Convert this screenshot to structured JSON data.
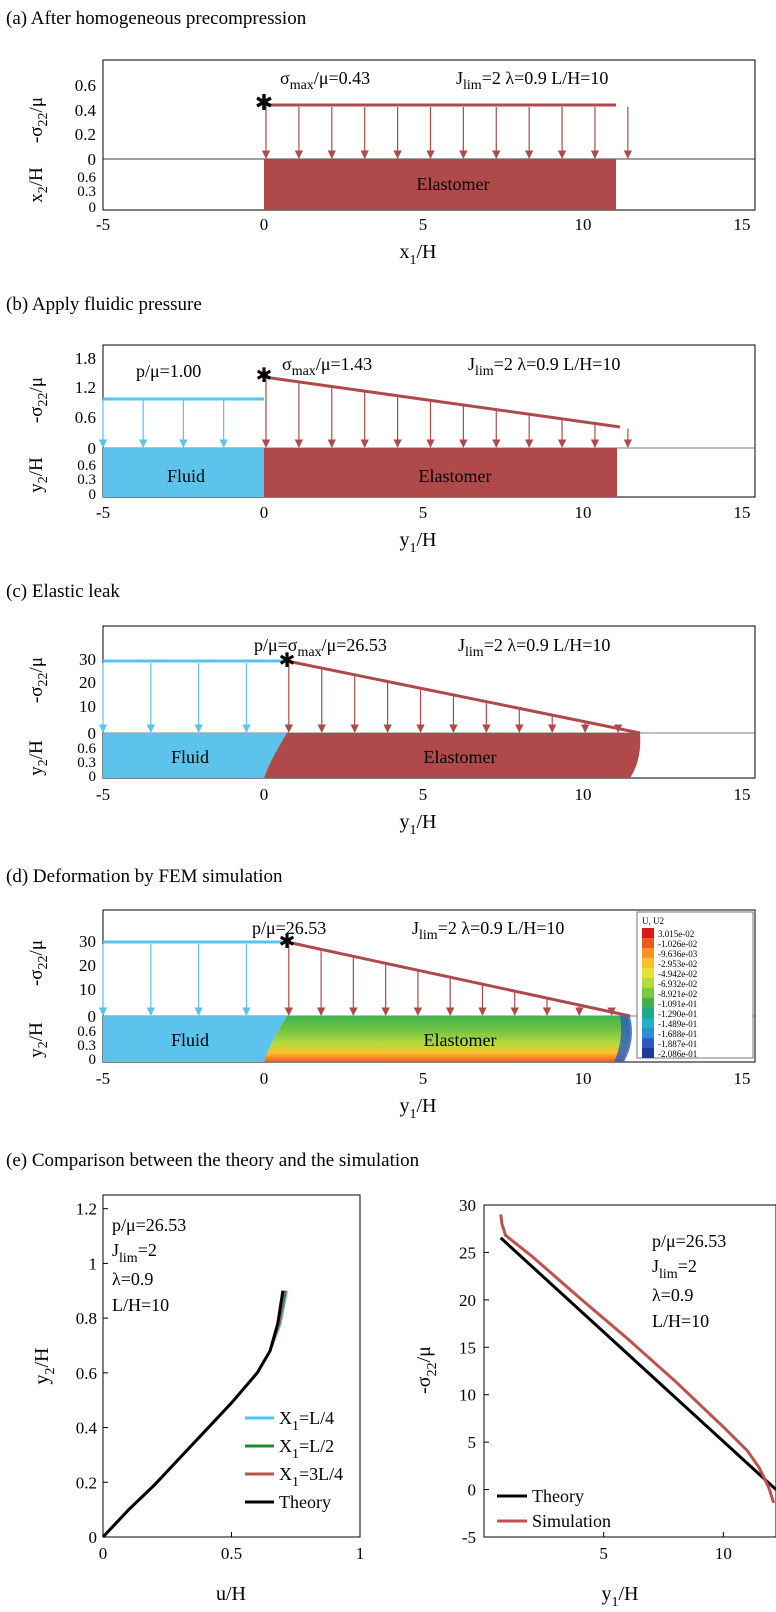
{
  "colors": {
    "fluid": "#5bc3ec",
    "elastomer": "#b04a4a",
    "theory": "#000000",
    "sim": "#c0504d",
    "x1l4": "#4fc3f7",
    "x1l2": "#1a8c2e",
    "x13l4": "#c0504d"
  },
  "panels": {
    "a": {
      "heading": "(a) After homogeneous precompression",
      "ylabel_top": "-σ",
      "ylabel_top_sub": "22",
      "ylabel_top_rest": "/μ",
      "ylabel_bot": "x",
      "ylabel_bot_sub": "2",
      "ylabel_bot_rest": "/H",
      "xlabel": "x",
      "xlabel_sub": "1",
      "xlabel_rest": "/H",
      "yticks_top": [
        "0.6",
        "0.4",
        "0.2",
        "0"
      ],
      "yticks_bot": [
        "0.6",
        "0.3",
        "0"
      ],
      "xticks": [
        "-5",
        "0",
        "5",
        "10",
        "15"
      ],
      "ann_sigma": "σ",
      "ann_sigma_sub": "max",
      "ann_sigma_rest": "/μ=0.43",
      "ann_j": "J",
      "ann_j_sub": "lim",
      "ann_j_rest": "=2   λ=0.9   L/H=10",
      "elastomer": "Elastomer"
    },
    "b": {
      "heading": "(b) Apply fluidic pressure",
      "ylabel_top": "-σ",
      "ylabel_top_sub": "22",
      "ylabel_top_rest": "/μ",
      "ylabel_bot": "y",
      "ylabel_bot_sub": "2",
      "ylabel_bot_rest": "/H",
      "xlabel": "y",
      "xlabel_sub": "1",
      "xlabel_rest": "/H",
      "yticks_top": [
        "1.8",
        "1.2",
        "0.6",
        "0"
      ],
      "yticks_bot": [
        "0.6",
        "0.3",
        "0"
      ],
      "xticks": [
        "-5",
        "0",
        "5",
        "10",
        "15"
      ],
      "ann_p": "p/μ=1.00",
      "ann_sigma": "σ",
      "ann_sigma_sub": "max",
      "ann_sigma_rest": "/μ=1.43",
      "ann_j": "J",
      "ann_j_sub": "lim",
      "ann_j_rest": "=2   λ=0.9   L/H=10",
      "fluid": "Fluid",
      "elastomer": "Elastomer"
    },
    "c": {
      "heading": "(c) Elastic leak",
      "ylabel_top": "-σ",
      "ylabel_top_sub": "22",
      "ylabel_top_rest": "/μ",
      "ylabel_bot": "y",
      "ylabel_bot_sub": "2",
      "ylabel_bot_rest": "/H",
      "xlabel": "y",
      "xlabel_sub": "1",
      "xlabel_rest": "/H",
      "yticks_top": [
        "30",
        "20",
        "10",
        "0"
      ],
      "yticks_bot": [
        "0.6",
        "0.3",
        "0"
      ],
      "xticks": [
        "-5",
        "0",
        "5",
        "10",
        "15"
      ],
      "ann_p": "p/μ=σ",
      "ann_p_sub": "max",
      "ann_p_rest": "/μ=26.53",
      "ann_j": "J",
      "ann_j_sub": "lim",
      "ann_j_rest": "=2   λ=0.9   L/H=10",
      "fluid": "Fluid",
      "elastomer": "Elastomer"
    },
    "d": {
      "heading": "(d) Deformation by FEM simulation",
      "ylabel_top": "-σ",
      "ylabel_top_sub": "22",
      "ylabel_top_rest": "/μ",
      "ylabel_bot": "y",
      "ylabel_bot_sub": "2",
      "ylabel_bot_rest": "/H",
      "xlabel": "y",
      "xlabel_sub": "1",
      "xlabel_rest": "/H",
      "yticks_top": [
        "30",
        "20",
        "10",
        "0"
      ],
      "yticks_bot": [
        "0.6",
        "0.3",
        "0"
      ],
      "xticks": [
        "-5",
        "0",
        "5",
        "10",
        "15"
      ],
      "ann_p": "p/μ=26.53",
      "ann_j": "J",
      "ann_j_sub": "lim",
      "ann_j_rest": "=2   λ=0.9   L/H=10",
      "fluid": "Fluid",
      "elastomer": "Elastomer",
      "legend_title": "U, U2",
      "legend_values": [
        "3.015e-02",
        "-1.026e-02",
        "-9.636e-03",
        "-2.953e-02",
        "-4.942e-02",
        "-6.932e-02",
        "-8.921e-02",
        "-1.091e-01",
        "-1.290e-01",
        "-1.489e-01",
        "-1.688e-01",
        "-1.887e-01",
        "-2.086e-01"
      ],
      "legend_colors": [
        "#d7191c",
        "#f05a1e",
        "#f7931e",
        "#fdbf2d",
        "#e6e338",
        "#b5d93b",
        "#7cc644",
        "#3fb24c",
        "#1fa88a",
        "#22b0c8",
        "#2c8ed6",
        "#2a5bc4",
        "#1f3a9a"
      ]
    },
    "e": {
      "heading": "(e) Comparison between the theory and the simulation"
    }
  },
  "chart_data": [
    {
      "type": "line",
      "panel": "a",
      "title": "(a) After homogeneous precompression",
      "xlabel": "x1/H",
      "ylabel": "-σ22/μ",
      "xlim": [
        -5,
        15
      ],
      "ylim": [
        0,
        0.8
      ],
      "series": [
        {
          "points": [
            [
              0,
              0.43
            ],
            [
              11.1,
              0.43
            ]
          ]
        }
      ],
      "elastomer_extent": [
        0,
        11.1
      ]
    },
    {
      "type": "line",
      "panel": "b",
      "title": "(b) Apply fluidic pressure",
      "xlabel": "y1/H",
      "ylabel": "-σ22/μ",
      "xlim": [
        -5,
        15
      ],
      "ylim": [
        0,
        2.1
      ],
      "series": [
        {
          "name": "Fluid",
          "points": [
            [
              -5,
              1.0
            ],
            [
              0,
              1.0
            ]
          ]
        },
        {
          "name": "Elastomer",
          "points": [
            [
              0,
              1.43
            ],
            [
              11.1,
              0.43
            ]
          ]
        }
      ]
    },
    {
      "type": "line",
      "panel": "c",
      "title": "(c) Elastic leak",
      "xlabel": "y1/H",
      "ylabel": "-σ22/μ",
      "xlim": [
        -5,
        15
      ],
      "ylim": [
        0,
        37
      ],
      "series": [
        {
          "name": "Fluid",
          "points": [
            [
              -5,
              26.53
            ],
            [
              0.7,
              26.53
            ]
          ]
        },
        {
          "name": "Elastomer",
          "points": [
            [
              0.7,
              26.53
            ],
            [
              11.8,
              0
            ]
          ]
        }
      ]
    },
    {
      "type": "line",
      "panel": "d",
      "title": "(d) Deformation by FEM simulation",
      "xlabel": "y1/H",
      "ylabel": "-σ22/μ",
      "xlim": [
        -5,
        15
      ],
      "ylim": [
        0,
        37
      ],
      "series": [
        {
          "name": "Fluid",
          "points": [
            [
              -5,
              26.53
            ],
            [
              0.7,
              26.53
            ]
          ]
        },
        {
          "name": "Elastomer",
          "points": [
            [
              0.7,
              26.53
            ],
            [
              11.5,
              0
            ]
          ]
        }
      ]
    },
    {
      "type": "line",
      "panel": "e-left",
      "xlabel": "u/H",
      "ylabel": "y2/H",
      "xlim": [
        0,
        1
      ],
      "ylim": [
        0,
        1.25
      ],
      "xticks": [
        "0",
        "0.5",
        "1"
      ],
      "yticks": [
        "0",
        "0.2",
        "0.4",
        "0.6",
        "0.8",
        "1",
        "1.2"
      ],
      "annotations": [
        "p/μ=26.53",
        "Jlim=2",
        "λ=0.9",
        "L/H=10"
      ],
      "legend": [
        "X1=L/4",
        "X1=L/2",
        "X1=3L/4",
        "Theory"
      ],
      "legend_position": "bottom-right",
      "series": [
        {
          "name": "X1=L/4",
          "x": [
            0,
            0.1,
            0.2,
            0.3,
            0.4,
            0.5,
            0.6,
            0.65,
            0.69,
            0.715
          ],
          "y": [
            0,
            0.1,
            0.19,
            0.29,
            0.39,
            0.49,
            0.6,
            0.68,
            0.78,
            0.9
          ]
        },
        {
          "name": "X1=L/2",
          "x": [
            0,
            0.1,
            0.2,
            0.3,
            0.4,
            0.5,
            0.6,
            0.65,
            0.685,
            0.71
          ],
          "y": [
            0,
            0.1,
            0.19,
            0.29,
            0.39,
            0.49,
            0.6,
            0.68,
            0.78,
            0.9
          ]
        },
        {
          "name": "X1=3L/4",
          "x": [
            0,
            0.1,
            0.2,
            0.3,
            0.4,
            0.5,
            0.6,
            0.65,
            0.685,
            0.705
          ],
          "y": [
            0,
            0.1,
            0.19,
            0.29,
            0.39,
            0.49,
            0.6,
            0.68,
            0.78,
            0.9
          ]
        },
        {
          "name": "Theory",
          "x": [
            0,
            0.1,
            0.2,
            0.3,
            0.4,
            0.5,
            0.6,
            0.65,
            0.68,
            0.7
          ],
          "y": [
            0,
            0.1,
            0.19,
            0.29,
            0.39,
            0.49,
            0.6,
            0.68,
            0.78,
            0.9
          ]
        }
      ]
    },
    {
      "type": "line",
      "panel": "e-right",
      "xlabel": "y1/H",
      "ylabel": "-σ22/μ",
      "xlim": [
        0,
        12.2
      ],
      "ylim": [
        -5,
        30
      ],
      "xticks": [
        "5",
        "10"
      ],
      "yticks": [
        "-5",
        "0",
        "5",
        "10",
        "15",
        "20",
        "25",
        "30"
      ],
      "annotations": [
        "p/μ=26.53",
        "Jlim=2",
        "λ=0.9",
        "L/H=10"
      ],
      "legend": [
        "Theory",
        "Simulation"
      ],
      "legend_position": "bottom-left",
      "series": [
        {
          "name": "Theory",
          "x": [
            0.7,
            12.2
          ],
          "y": [
            26.53,
            0
          ]
        },
        {
          "name": "Simulation",
          "x": [
            0.7,
            0.75,
            0.9,
            1.2,
            2,
            4,
            6,
            8,
            10,
            11,
            11.5,
            11.9,
            12.1
          ],
          "y": [
            29,
            28,
            26.8,
            26.2,
            24.6,
            20.2,
            15.9,
            11.4,
            6.6,
            4.1,
            2.3,
            0.2,
            -1.4
          ]
        }
      ]
    }
  ]
}
